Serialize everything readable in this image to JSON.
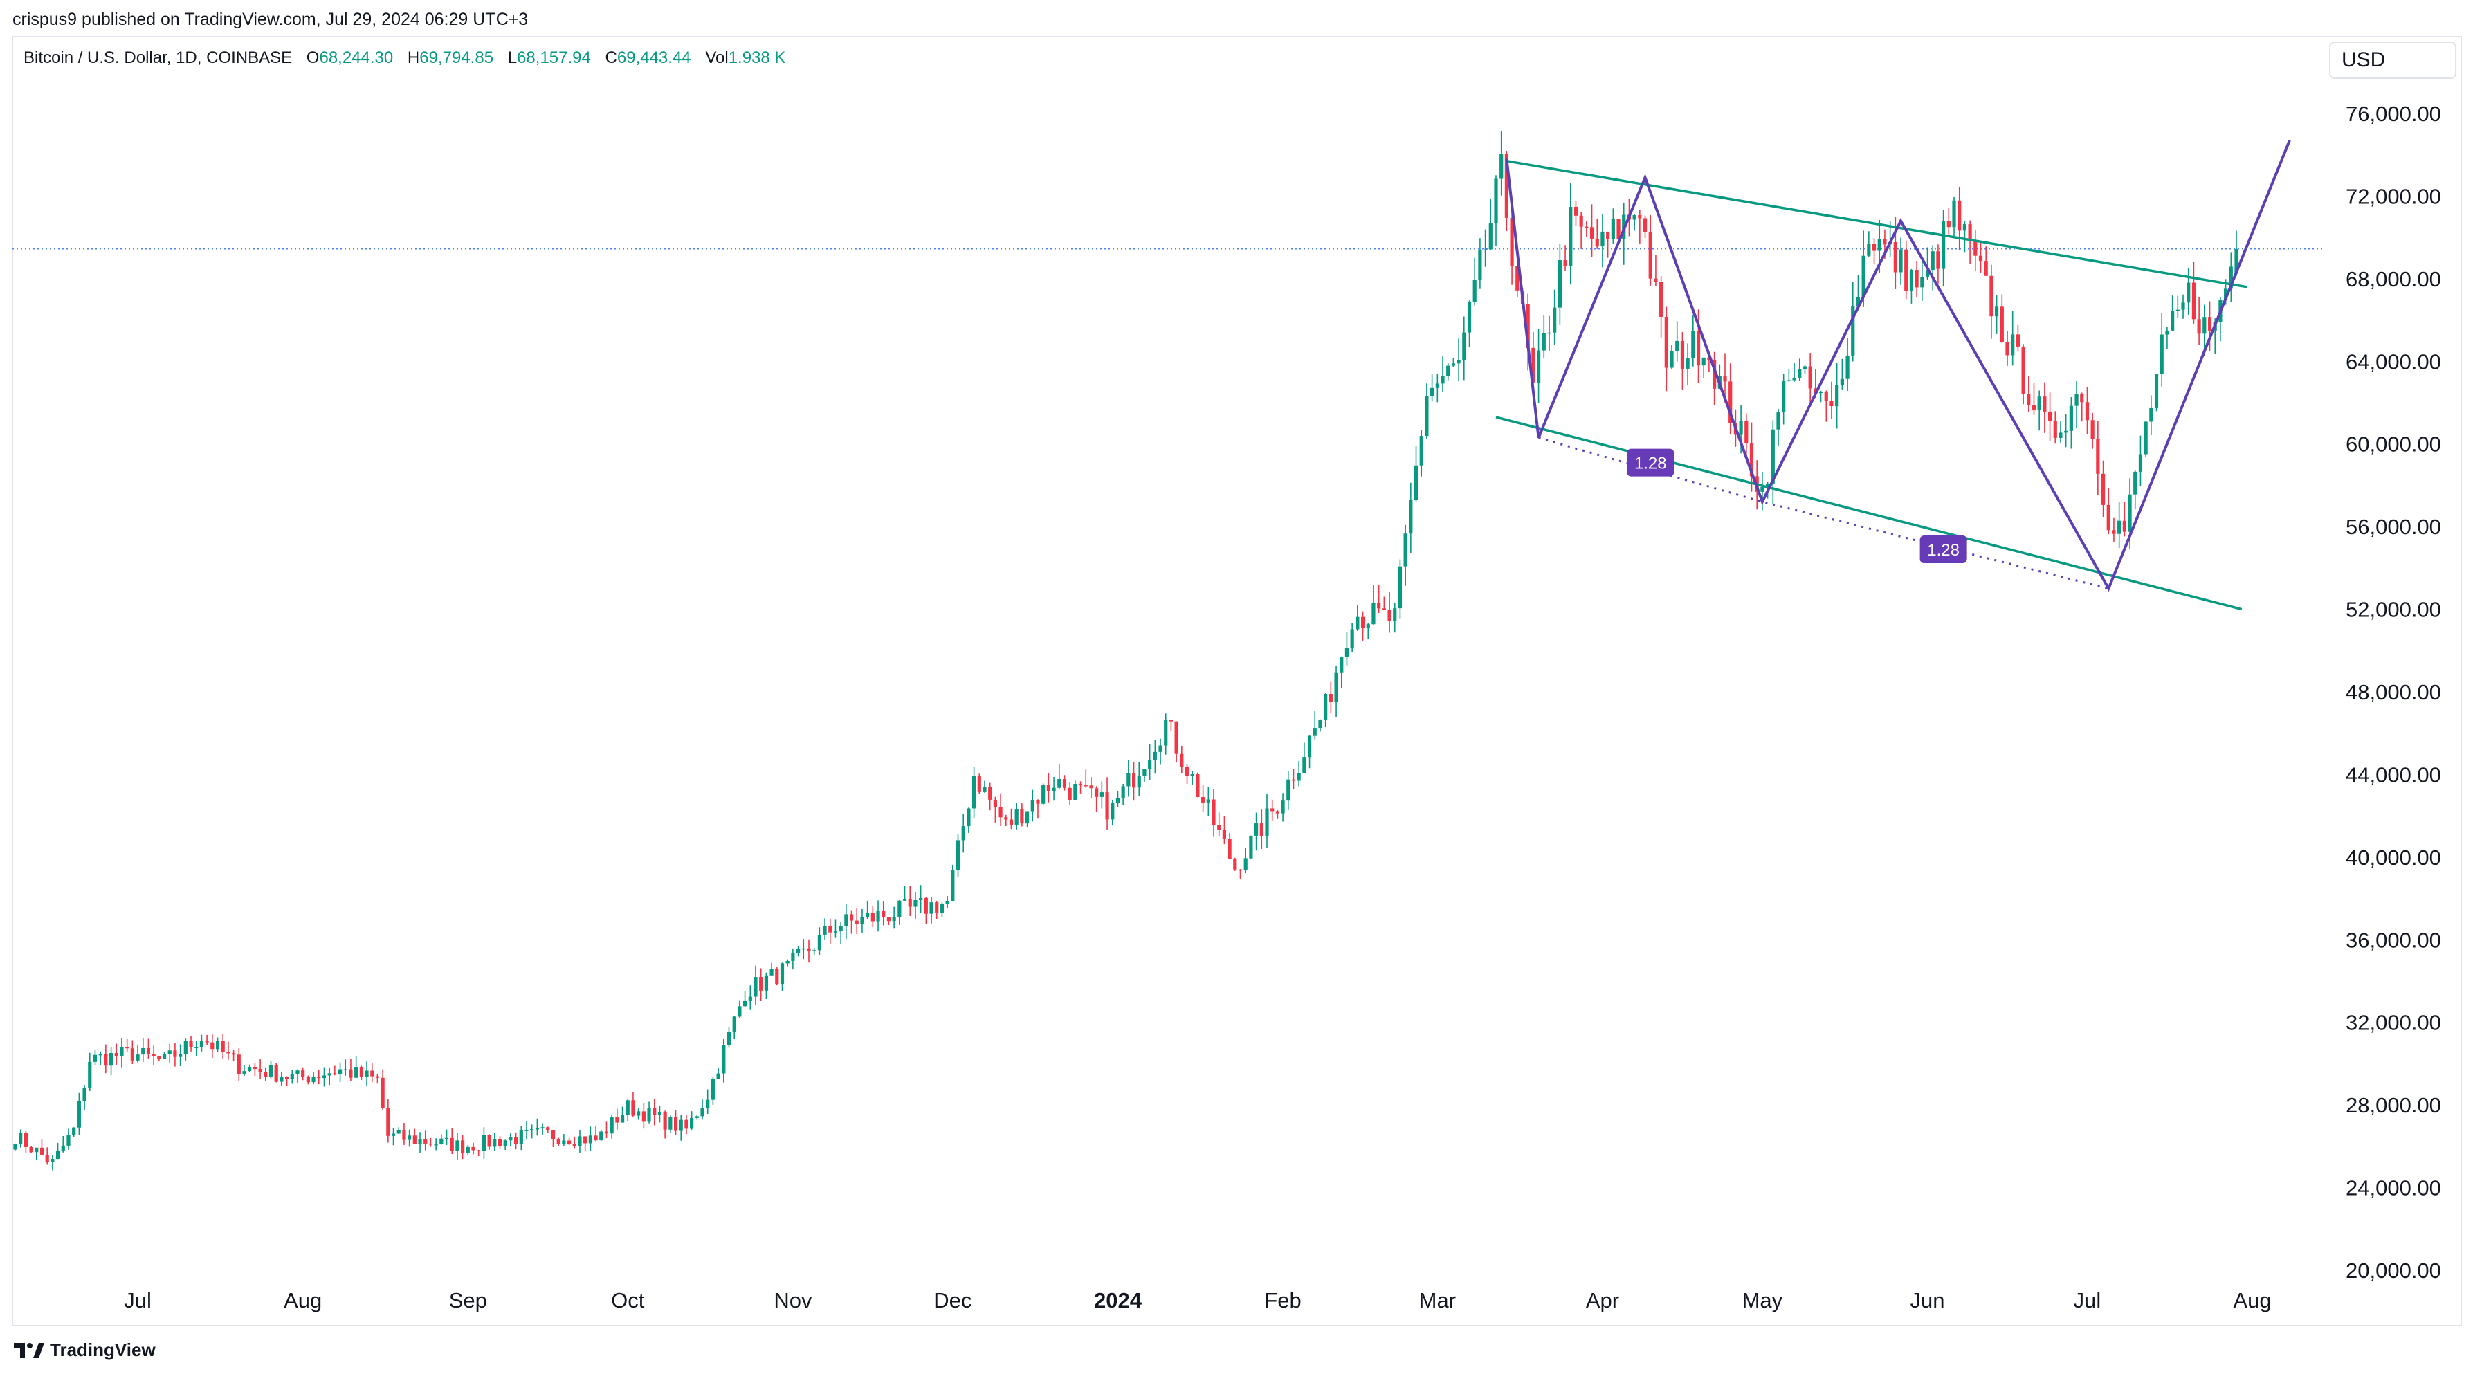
{
  "header": {
    "text": "crispus9 published on TradingView.com, Jul 29, 2024 06:29 UTC+3"
  },
  "legend": {
    "symbol": "Bitcoin / U.S. Dollar, 1D, COINBASE",
    "open_label": "O",
    "open": "68,244.30",
    "high_label": "H",
    "high": "69,794.85",
    "low_label": "L",
    "low": "68,157.94",
    "close_label": "C",
    "close": "69,443.44",
    "vol_label": "Vol",
    "vol": "1.938 K"
  },
  "currency": "USD",
  "brand": "TradingView",
  "colors": {
    "up": "#089981",
    "down": "#f23645",
    "channel": "#089981",
    "pattern": "#5b3fb5",
    "badge": "#673ab7",
    "axis_text": "#131722"
  },
  "chart_data": {
    "type": "candlestick",
    "title": "Bitcoin / U.S. Dollar, 1D, COINBASE",
    "ylabel": "USD",
    "ylim": [
      20000,
      78000
    ],
    "y_ticks": [
      "76,000.00",
      "72,000.00",
      "68,000.00",
      "64,000.00",
      "60,000.00",
      "56,000.00",
      "52,000.00",
      "48,000.00",
      "44,000.00",
      "40,000.00",
      "36,000.00",
      "32,000.00",
      "28,000.00",
      "24,000.00",
      "20,000.00"
    ],
    "x_ticks": [
      {
        "label": "Jul",
        "date": "2023-07-01",
        "bold": false
      },
      {
        "label": "Aug",
        "date": "2023-08-01",
        "bold": false
      },
      {
        "label": "Sep",
        "date": "2023-09-01",
        "bold": false
      },
      {
        "label": "Oct",
        "date": "2023-10-01",
        "bold": false
      },
      {
        "label": "Nov",
        "date": "2023-11-01",
        "bold": false
      },
      {
        "label": "Dec",
        "date": "2023-12-01",
        "bold": false
      },
      {
        "label": "2024",
        "date": "2024-01-01",
        "bold": true
      },
      {
        "label": "Feb",
        "date": "2024-02-01",
        "bold": false
      },
      {
        "label": "Mar",
        "date": "2024-03-01",
        "bold": false
      },
      {
        "label": "Apr",
        "date": "2024-04-01",
        "bold": false
      },
      {
        "label": "May",
        "date": "2024-05-01",
        "bold": false
      },
      {
        "label": "Jun",
        "date": "2024-06-01",
        "bold": false
      },
      {
        "label": "Jul",
        "date": "2024-07-01",
        "bold": false
      },
      {
        "label": "Aug",
        "date": "2024-08-01",
        "bold": false
      }
    ],
    "start_date": "2023-06-08",
    "end_date": "2024-07-29",
    "last_close": 69443.44,
    "price_path": [
      [
        "2023-06-08",
        26500
      ],
      [
        "2023-06-15",
        25200
      ],
      [
        "2023-06-19",
        26800
      ],
      [
        "2023-06-22",
        30200
      ],
      [
        "2023-06-30",
        30500
      ],
      [
        "2023-07-06",
        30100
      ],
      [
        "2023-07-13",
        31300
      ],
      [
        "2023-07-20",
        29900
      ],
      [
        "2023-07-31",
        29300
      ],
      [
        "2023-08-08",
        29700
      ],
      [
        "2023-08-15",
        29200
      ],
      [
        "2023-08-17",
        26500
      ],
      [
        "2023-08-31",
        26000
      ],
      [
        "2023-09-15",
        26600
      ],
      [
        "2023-09-25",
        26300
      ],
      [
        "2023-10-01",
        27900
      ],
      [
        "2023-10-12",
        26800
      ],
      [
        "2023-10-16",
        28500
      ],
      [
        "2023-10-23",
        33500
      ],
      [
        "2023-10-31",
        34600
      ],
      [
        "2023-11-09",
        36700
      ],
      [
        "2023-11-20",
        37300
      ],
      [
        "2023-11-30",
        37800
      ],
      [
        "2023-12-05",
        44000
      ],
      [
        "2023-12-11",
        41500
      ],
      [
        "2023-12-20",
        43700
      ],
      [
        "2023-12-31",
        42300
      ],
      [
        "2024-01-10",
        46500
      ],
      [
        "2024-01-17",
        42700
      ],
      [
        "2024-01-23",
        39500
      ],
      [
        "2024-01-31",
        42600
      ],
      [
        "2024-02-09",
        47200
      ],
      [
        "2024-02-14",
        51800
      ],
      [
        "2024-02-22",
        51500
      ],
      [
        "2024-02-28",
        62500
      ],
      [
        "2024-03-05",
        63800
      ],
      [
        "2024-03-13",
        73000
      ],
      [
        "2024-03-19",
        62500
      ],
      [
        "2024-03-26",
        70600
      ],
      [
        "2024-04-01",
        69500
      ],
      [
        "2024-04-08",
        71600
      ],
      [
        "2024-04-13",
        64000
      ],
      [
        "2024-04-20",
        64900
      ],
      [
        "2024-05-01",
        57700
      ],
      [
        "2024-05-06",
        63800
      ],
      [
        "2024-05-14",
        61400
      ],
      [
        "2024-05-21",
        70200
      ],
      [
        "2024-05-31",
        67500
      ],
      [
        "2024-06-06",
        71100
      ],
      [
        "2024-06-13",
        66800
      ],
      [
        "2024-06-24",
        60300
      ],
      [
        "2024-06-30",
        62700
      ],
      [
        "2024-07-05",
        56600
      ],
      [
        "2024-07-08",
        55800
      ],
      [
        "2024-07-15",
        64400
      ],
      [
        "2024-07-20",
        67200
      ],
      [
        "2024-07-24",
        65200
      ],
      [
        "2024-07-29",
        69443
      ]
    ],
    "annotations": {
      "channel_upper": [
        [
          "2024-03-14",
          73700
        ],
        [
          "2024-07-31",
          67600
        ]
      ],
      "channel_lower": [
        [
          "2024-03-12",
          61300
        ],
        [
          "2024-07-30",
          52000
        ]
      ],
      "pattern": [
        [
          "2024-03-14",
          73800
        ],
        [
          "2024-03-20",
          60300
        ],
        [
          "2024-04-09",
          72900
        ],
        [
          "2024-05-01",
          57200
        ],
        [
          "2024-05-27",
          70800
        ],
        [
          "2024-07-05",
          53000
        ],
        [
          "2024-08-08",
          74700
        ]
      ],
      "measure_line": [
        [
          "2024-03-20",
          60300
        ],
        [
          "2024-05-01",
          57200
        ],
        [
          "2024-07-05",
          53000
        ]
      ],
      "ratio_labels": [
        {
          "text": "1.28",
          "at": [
            "2024-04-10",
            59100
          ]
        },
        {
          "text": "1.28",
          "at": [
            "2024-06-04",
            54900
          ]
        }
      ],
      "current_price_line": 69443.44
    }
  }
}
